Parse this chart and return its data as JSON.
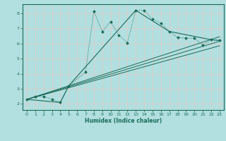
{
  "xlabel": "Humidex (Indice chaleur)",
  "ylabel": "",
  "background_color": "#b2dfdf",
  "grid_color": "#d0ecec",
  "line_color": "#1a6b5a",
  "xlim": [
    -0.5,
    23.5
  ],
  "ylim": [
    1.6,
    8.6
  ],
  "xticks": [
    0,
    1,
    2,
    3,
    4,
    5,
    6,
    7,
    8,
    9,
    10,
    11,
    12,
    13,
    14,
    15,
    16,
    17,
    18,
    19,
    20,
    21,
    22,
    23
  ],
  "yticks": [
    2,
    3,
    4,
    5,
    6,
    7,
    8
  ],
  "curve1_x": [
    0,
    1,
    2,
    3,
    4,
    5,
    7,
    8,
    9,
    10,
    11,
    12,
    13,
    14,
    15,
    16,
    17,
    18,
    19,
    20,
    21,
    22,
    23
  ],
  "curve1_y": [
    2.3,
    2.5,
    2.5,
    2.3,
    2.1,
    3.2,
    4.1,
    8.15,
    6.8,
    7.45,
    6.55,
    6.05,
    8.2,
    8.2,
    7.6,
    7.35,
    6.8,
    6.4,
    6.35,
    6.35,
    5.9,
    6.25,
    6.2
  ],
  "curve2_x": [
    0,
    4,
    5,
    13,
    17,
    22,
    23
  ],
  "curve2_y": [
    2.3,
    2.1,
    3.2,
    8.2,
    6.8,
    6.25,
    6.2
  ],
  "line1_x": [
    0,
    23
  ],
  "line1_y": [
    2.3,
    6.45
  ],
  "line2_x": [
    0,
    23
  ],
  "line2_y": [
    2.3,
    6.15
  ],
  "line3_x": [
    0,
    23
  ],
  "line3_y": [
    2.3,
    5.85
  ]
}
